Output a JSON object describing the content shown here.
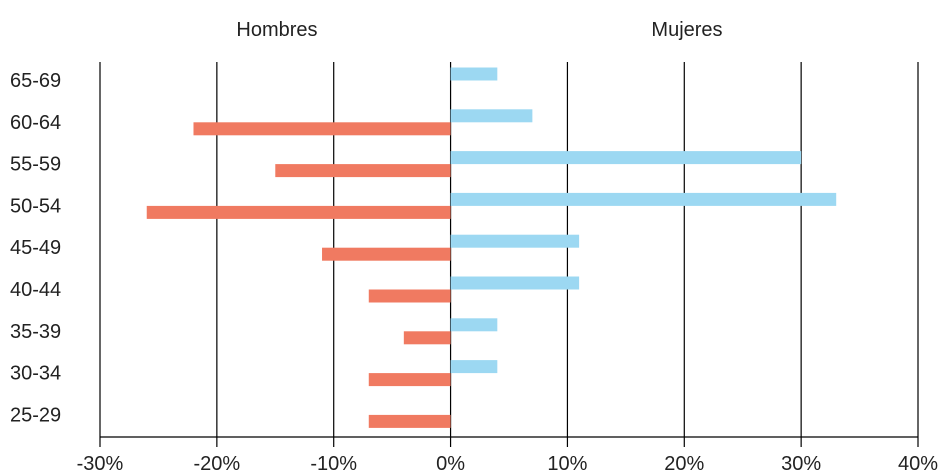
{
  "chart_data": {
    "type": "bar",
    "orientation": "horizontal",
    "title": "",
    "xlabel": "",
    "ylabel": "",
    "categories": [
      "65-69",
      "60-64",
      "55-59",
      "50-54",
      "45-49",
      "40-44",
      "35-39",
      "30-34",
      "25-29"
    ],
    "group_labels": {
      "left": "Hombres",
      "right": "Mujeres"
    },
    "series": [
      {
        "values": [
          0,
          -22,
          -15,
          -26,
          -11,
          -7,
          -4,
          -7,
          -7
        ],
        "color": "#f07a61"
      },
      {
        "values": [
          4,
          7,
          30,
          33,
          11,
          11,
          4,
          4,
          0
        ],
        "color": "#9cd8f2"
      }
    ],
    "xlim": [
      -30,
      40
    ],
    "x_ticks": [
      "-30%",
      "-20%",
      "-10%",
      "0%",
      "10%",
      "20%",
      "30%",
      "40%"
    ],
    "x_tick_values": [
      -30,
      -20,
      -10,
      0,
      10,
      20,
      30,
      40
    ],
    "grid": "vertical",
    "legend": "none"
  }
}
